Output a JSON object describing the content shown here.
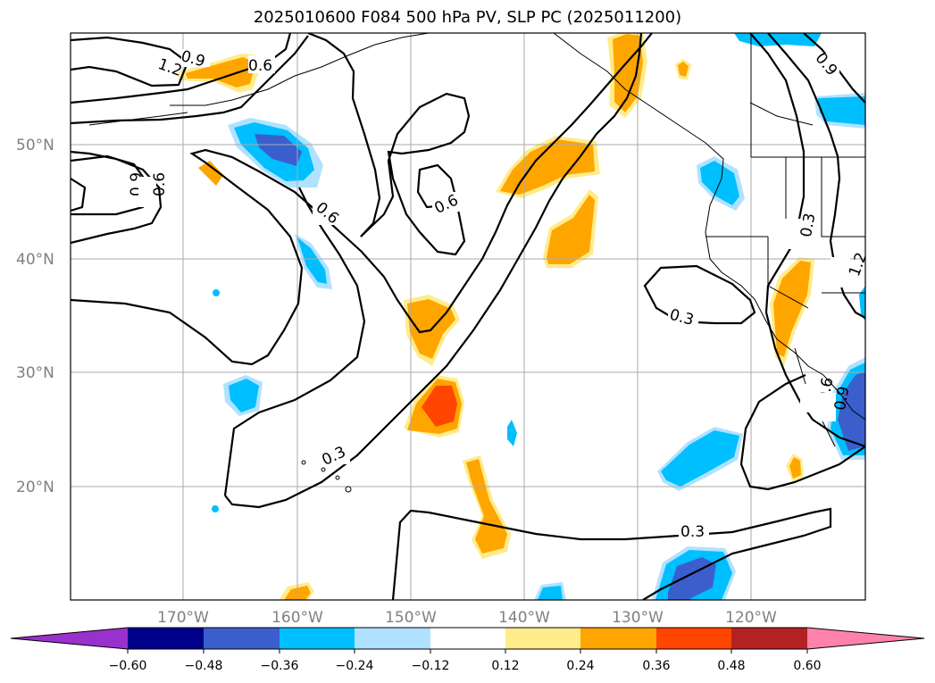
{
  "title": "2025010600 F084 500 hPa PV, SLP PC (2025011200)",
  "map": {
    "lat_labels": [
      "50°N",
      "40°N",
      "30°N",
      "20°N"
    ],
    "lon_labels": [
      "170°W",
      "160°W",
      "150°W",
      "140°W",
      "130°W",
      "120°W"
    ],
    "contour_labels": [
      "0.9",
      "0.6",
      "1.2",
      "0.9",
      "0.6",
      "0.6",
      "0.6",
      "0.3",
      "0.3",
      "0.3",
      "0.9",
      "0.3",
      "1.2",
      "0.6",
      "0.9"
    ]
  },
  "colorbar": {
    "ticks": [
      "−0.60",
      "−0.48",
      "−0.36",
      "−0.24",
      "−0.12",
      "0.12",
      "0.24",
      "0.36",
      "0.48",
      "0.60"
    ],
    "colors": [
      "#9932cc",
      "#00008b",
      "#3a5fcd",
      "#00bfff",
      "#b0e2ff",
      "#ffffff",
      "#ffec8b",
      "#ffa500",
      "#ff4500",
      "#b22222",
      "#ff82ab"
    ]
  },
  "colors": {
    "pos1": "#ffec8b",
    "pos2": "#ffa500",
    "pos3": "#ff4500",
    "neg1": "#b0e2ff",
    "neg2": "#00bfff",
    "neg3": "#3a5fcd"
  }
}
